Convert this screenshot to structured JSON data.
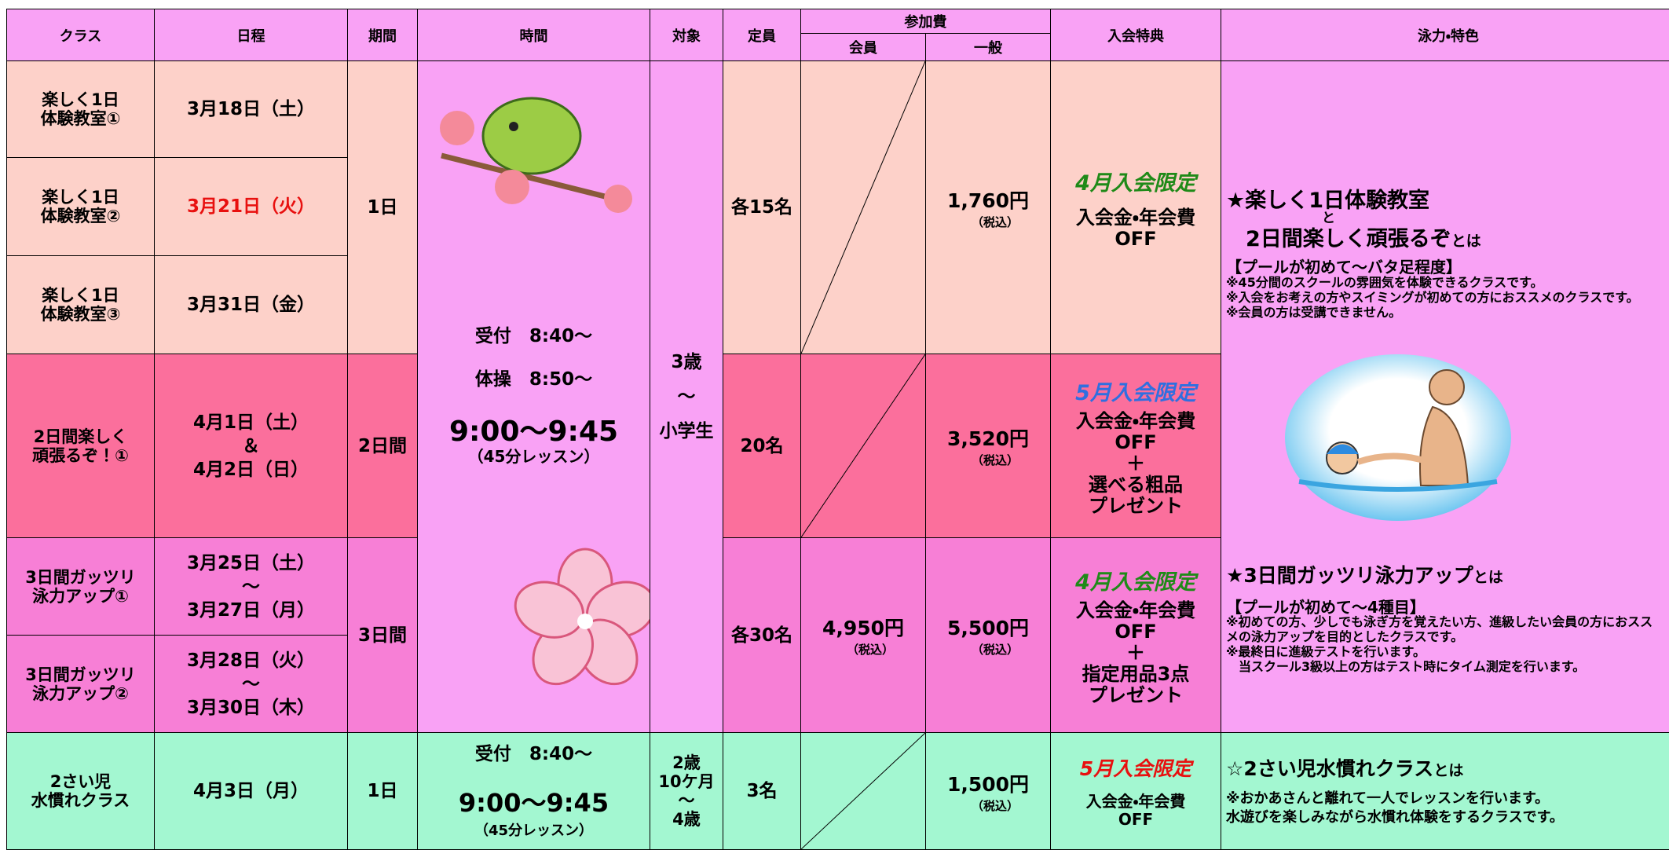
{
  "header": {
    "class": "クラス",
    "schedule": "日程",
    "period": "期間",
    "time": "時間",
    "target": "対象",
    "capacity": "定員",
    "fee": "参加費",
    "member": "会員",
    "general": "一般",
    "benefit": "入会特典",
    "feature": "泳力・特色"
  },
  "classes": [
    {
      "name": "楽しく1日\n体験教室①",
      "date": "3月18日（土）"
    },
    {
      "name": "楽しく1日\n体験教室②",
      "date": "3月21日（火）"
    },
    {
      "name": "楽しく1日\n体験教室③",
      "date": "3月31日（金）"
    },
    {
      "name": "2日間楽しく\n頑張るぞ！①",
      "date": "4月1日（土）\n＆\n4月2日（日）"
    },
    {
      "name": "3日間ガッツリ\n泳力アップ①",
      "date": "3月25日（土）\n～\n3月27日（月）"
    },
    {
      "name": "3日間ガッツリ\n泳力アップ②",
      "date": "3月28日（火）\n～\n3月30日（木）"
    },
    {
      "name": "2さい児\n水慣れクラス",
      "date": "4月3日（月）"
    }
  ],
  "groups": [
    {
      "period": "1日",
      "capacity": "各15名",
      "general": "1,760円",
      "general_tax": "（税込）",
      "benefit_limit": "4月入会限定",
      "benefit": "入会金・年会費\nOFF"
    },
    {
      "period": "2日間",
      "capacity": "20名",
      "general": "3,520円",
      "general_tax": "（税込）",
      "benefit_limit": "5月入会限定",
      "benefit": "入会金・年会費\nOFF\n＋\n選べる粗品\nプレゼント"
    },
    {
      "period": "3日間",
      "capacity": "各30名",
      "member": "4,950円",
      "member_tax": "（税込）",
      "general": "5,500円",
      "general_tax": "（税込）",
      "benefit_limit": "4月入会限定",
      "benefit": "入会金・年会費\nOFF\n＋\n指定用品3点\nプレゼント"
    },
    {
      "period": "1日",
      "capacity": "3名",
      "general": "1,500円",
      "general_tax": "（税込）",
      "benefit_limit": "5月入会限定",
      "benefit": "入会金・年会費\nOFF"
    }
  ],
  "schedule_main": {
    "reception": "受付　8:40～",
    "exercise": "体操　8:50～",
    "lesson": "9:00～9:45",
    "note": "（45分レッスン）",
    "target": "3歳\n～\n小学生"
  },
  "schedule_toddler": {
    "reception": "受付　8:40～",
    "lesson": "9:00～9:45",
    "note": "（45分レッスン）",
    "target": "2歳\n10ケ月\n～\n4歳"
  },
  "features": {
    "trial_title": "★楽しく1日体験教室",
    "trial_and": "と",
    "trial_title2": "2日間楽しく頑張るぞ",
    "trial_suffix": "とは",
    "trial_level": "【プールが初めて～バタ足程度】",
    "trial_notes": [
      "※45分間のスクールの雰囲気を体験できるクラスです。",
      "※入会をお考えの方やスイミングが初めての方におススメのクラスです。",
      "※会員の方は受講できません。"
    ],
    "intensive_title": "★3日間ガッツリ泳力アップ",
    "intensive_suffix": "とは",
    "intensive_level": "【プールが初めて～4種目】",
    "intensive_notes": [
      "※初めての方、少しでも泳ぎ方を覚えたい方、進級したい会員の方におスス",
      "メの泳力アップを目的としたクラスです。",
      "※最終日に進級テストを行います。",
      "　当スクール3級以上の方はテスト時にタイム測定を行います。"
    ],
    "toddler_title": "☆2さい児水慣れクラス",
    "toddler_suffix": "とは",
    "toddler_notes": [
      "※おかあさんと離れて一人でレッスンを行います。",
      "水遊びを楽しみながら水慣れ体験をするクラスです。"
    ]
  }
}
